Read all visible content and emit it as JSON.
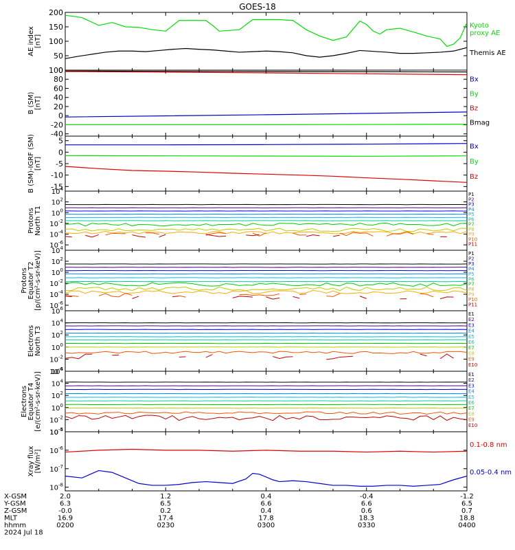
{
  "title": "GOES-18",
  "date_label": "2024 Jul 18",
  "colors": {
    "black": "#000000",
    "green": "#00dd00",
    "blue": "#0000cc",
    "red": "#dd0000",
    "p1": "#000000",
    "p2": "#4b0082",
    "p3": "#0000dd",
    "p4": "#0088ee",
    "p5": "#00bbee",
    "p6": "#00cc99",
    "p7": "#00cc00",
    "p8": "#bbcc00",
    "p9": "#ffaa00",
    "p10": "#ee5500",
    "p11": "#bb0000"
  },
  "footer": {
    "rows": [
      {
        "label": "X-GSM",
        "values": [
          "2.0",
          "1.2",
          "0.4",
          "-0.4",
          "-1.2"
        ]
      },
      {
        "label": "Y-GSM",
        "values": [
          "6.3",
          "6.5",
          "6.6",
          "6.6",
          "6.5"
        ]
      },
      {
        "label": "Z-GSM",
        "values": [
          "-0.0",
          "0.2",
          "0.4",
          "0.6",
          "0.7"
        ]
      },
      {
        "label": "MLT",
        "values": [
          "16.9",
          "17.4",
          "17.8",
          "18.3",
          "18.8"
        ]
      },
      {
        "label": "hhmm",
        "values": [
          "0200",
          "0230",
          "0300",
          "0330",
          "0400"
        ]
      }
    ]
  },
  "chart_data": [
    {
      "type": "line",
      "panel": "ae",
      "ylabel": "AE index\n[nT]",
      "ylim": [
        0,
        200
      ],
      "yticks": [
        0,
        50,
        100,
        150,
        200
      ],
      "ytick_labels": [
        "0",
        "50",
        "100",
        "150",
        "200"
      ],
      "x_minutes": [
        0,
        120
      ],
      "series": [
        {
          "name": "Kyoto\nproxy AE",
          "color": "green",
          "x": [
            0,
            5,
            10,
            14,
            18,
            22,
            26,
            30,
            34,
            38,
            42,
            44,
            46,
            52,
            56,
            60,
            64,
            68,
            72,
            76,
            80,
            84,
            88,
            90,
            92,
            94,
            96,
            100,
            104,
            108,
            112,
            114,
            116,
            118,
            120
          ],
          "y": [
            190,
            182,
            155,
            165,
            150,
            148,
            140,
            135,
            172,
            172,
            172,
            155,
            135,
            140,
            175,
            175,
            175,
            172,
            140,
            118,
            103,
            115,
            170,
            158,
            135,
            125,
            140,
            145,
            132,
            118,
            108,
            82,
            90,
            112,
            165
          ]
        },
        {
          "name": "Themis AE",
          "color": "black",
          "x": [
            0,
            4,
            8,
            12,
            16,
            20,
            24,
            28,
            32,
            36,
            40,
            44,
            48,
            52,
            56,
            60,
            64,
            68,
            72,
            76,
            80,
            84,
            88,
            92,
            96,
            100,
            104,
            108,
            112,
            116,
            120
          ],
          "y": [
            40,
            48,
            55,
            62,
            66,
            66,
            64,
            68,
            72,
            75,
            72,
            70,
            66,
            62,
            64,
            66,
            64,
            60,
            50,
            45,
            50,
            58,
            68,
            65,
            62,
            58,
            58,
            60,
            62,
            66,
            78
          ]
        }
      ]
    },
    {
      "type": "line",
      "panel": "bsm",
      "ylabel": "B (SM)\n[nT]",
      "ylim": [
        -45,
        100
      ],
      "yticks": [
        -40,
        -20,
        0,
        20,
        40,
        60,
        80,
        100
      ],
      "ytick_labels": [
        "-40",
        "-20",
        "0",
        "20",
        "40",
        "60",
        "80",
        "100"
      ],
      "legend": [
        {
          "name": "Bx",
          "color": "blue"
        },
        {
          "name": "By",
          "color": "green"
        },
        {
          "name": "Bz",
          "color": "red"
        },
        {
          "name": "Bmag",
          "color": "black"
        }
      ],
      "series": [
        {
          "name": "Bmag",
          "color": "black",
          "x": [
            0,
            60,
            120
          ],
          "y": [
            98,
            97,
            96
          ]
        },
        {
          "name": "Bz",
          "color": "red",
          "x": [
            0,
            60,
            120
          ],
          "y": [
            97,
            94,
            90
          ]
        },
        {
          "name": "Bx",
          "color": "blue",
          "x": [
            0,
            60,
            120
          ],
          "y": [
            -3,
            2,
            8
          ]
        },
        {
          "name": "By",
          "color": "green",
          "x": [
            0,
            60,
            120
          ],
          "y": [
            -20,
            -20,
            -19
          ]
        }
      ]
    },
    {
      "type": "line",
      "panel": "bmi",
      "ylabel": "B (SM)-IGRF (SM)\n[nT]",
      "ylim": [
        -17,
        7
      ],
      "yticks": [
        -15,
        -10,
        -5,
        0,
        5
      ],
      "ytick_labels": [
        "-15",
        "-10",
        "-5",
        "0",
        "5"
      ],
      "legend": [
        {
          "name": "Bx",
          "color": "blue"
        },
        {
          "name": "By",
          "color": "green"
        },
        {
          "name": "Bz",
          "color": "red"
        }
      ],
      "series": [
        {
          "name": "Bx",
          "color": "blue",
          "x": [
            0,
            30,
            60,
            90,
            120
          ],
          "y": [
            3.2,
            3.2,
            3.3,
            3.5,
            3.8
          ]
        },
        {
          "name": "By",
          "color": "green",
          "x": [
            0,
            30,
            60,
            90,
            120
          ],
          "y": [
            -1.5,
            -1.6,
            -1.7,
            -1.8,
            -1.6
          ]
        },
        {
          "name": "Bz",
          "color": "red",
          "x": [
            0,
            10,
            20,
            30,
            40,
            50,
            60,
            70,
            80,
            90,
            100,
            110,
            120
          ],
          "y": [
            -6.2,
            -7.2,
            -8.0,
            -8.3,
            -8.7,
            -9.2,
            -9.6,
            -10.0,
            -10.5,
            -11.2,
            -11.8,
            -12.5,
            -13.2
          ]
        }
      ]
    },
    {
      "type": "line",
      "panel": "p1",
      "log": true,
      "ylabel": "Protons\nNorth T1",
      "ylim_exp": [
        -7,
        4
      ],
      "ytick_exps": [
        -6,
        -4,
        -2,
        0,
        2,
        4
      ],
      "channels": [
        {
          "name": "P1",
          "color": "p1",
          "level": 1.5
        },
        {
          "name": "P2",
          "color": "p2",
          "level": 0.9
        },
        {
          "name": "P3",
          "color": "p3",
          "level": 0.3
        },
        {
          "name": "P4",
          "color": "p4",
          "level": -0.3
        },
        {
          "name": "P5",
          "color": "p5",
          "level": -0.9
        },
        {
          "name": "P6",
          "color": "p6",
          "level": -1.5
        },
        {
          "name": "P7",
          "color": "p7",
          "level": -2.2,
          "noise": 0.3
        },
        {
          "name": "P8",
          "color": "p8",
          "level": -3.2,
          "noise": 0.3
        },
        {
          "name": "P9",
          "color": "p9",
          "level": -3.7,
          "noise": 0.25
        },
        {
          "name": "P10",
          "color": "p10",
          "level": -4.0,
          "noise": 0.4,
          "sparse": true
        },
        {
          "name": "P11",
          "color": "p11",
          "level": -4.3,
          "noise": 0.3,
          "sparse": true
        }
      ]
    },
    {
      "type": "line",
      "panel": "p2",
      "log": true,
      "ylabel": "Protons\nEquator T2\n[p/(cm²-s-sr-keV)]",
      "ylim_exp": [
        -7,
        4
      ],
      "ytick_exps": [
        -6,
        -4,
        -2,
        0,
        2,
        4
      ],
      "channels": [
        {
          "name": "P1",
          "color": "p1",
          "level": 1.5
        },
        {
          "name": "P2",
          "color": "p2",
          "level": 0.9
        },
        {
          "name": "P3",
          "color": "p3",
          "level": 0.3
        },
        {
          "name": "P4",
          "color": "p4",
          "level": -0.3
        },
        {
          "name": "P5",
          "color": "p5",
          "level": -1.0
        },
        {
          "name": "P6",
          "color": "p6",
          "level": -1.7
        },
        {
          "name": "P7",
          "color": "p7",
          "level": -2.2,
          "noise": 0.35
        },
        {
          "name": "P8",
          "color": "p8",
          "level": -3.0,
          "noise": 0.35
        },
        {
          "name": "P9",
          "color": "p9",
          "level": -3.6,
          "noise": 0.3
        },
        {
          "name": "P10",
          "color": "p10",
          "level": -4.2,
          "noise": 0.4,
          "sparse": true
        },
        {
          "name": "P11",
          "color": "p11",
          "level": -4.6,
          "noise": 0.3,
          "sparse": true
        }
      ]
    },
    {
      "type": "line",
      "panel": "e3",
      "log": true,
      "ylabel": "Electrons\nNorth T3",
      "ylim_exp": [
        -4,
        6
      ],
      "ytick_exps": [
        -4,
        -2,
        0,
        2,
        4,
        6
      ],
      "channels": [
        {
          "name": "E1",
          "color": "p1",
          "level": 4.0
        },
        {
          "name": "E2",
          "color": "p2",
          "level": 3.5
        },
        {
          "name": "E3",
          "color": "p3",
          "level": 2.9
        },
        {
          "name": "E4",
          "color": "p4",
          "level": 2.3
        },
        {
          "name": "E5",
          "color": "p5",
          "level": 1.7
        },
        {
          "name": "E6",
          "color": "p6",
          "level": 1.2
        },
        {
          "name": "E7",
          "color": "p7",
          "level": 0.6
        },
        {
          "name": "E8",
          "color": "p8",
          "level": 0.0
        },
        {
          "name": "E9",
          "color": "p10",
          "level": -0.9,
          "noise": 0.2
        },
        {
          "name": "E10",
          "color": "p11",
          "level": -1.6,
          "noise": 0.45,
          "sparse": true
        }
      ]
    },
    {
      "type": "line",
      "panel": "e4",
      "log": true,
      "ylabel": "Electrons\nEquator T4\n[e/(cm²-s-sr-keV)]",
      "ylim_exp": [
        -4,
        6
      ],
      "ytick_exps": [
        -4,
        -2,
        0,
        2,
        4,
        6
      ],
      "channels": [
        {
          "name": "E1",
          "color": "p1",
          "level": 4.2
        },
        {
          "name": "E2",
          "color": "p2",
          "level": 3.6
        },
        {
          "name": "E3",
          "color": "p3",
          "level": 3.0
        },
        {
          "name": "E4",
          "color": "p4",
          "level": 2.3
        },
        {
          "name": "E5",
          "color": "p5",
          "level": 1.7
        },
        {
          "name": "E6",
          "color": "p6",
          "level": 1.1
        },
        {
          "name": "E7",
          "color": "p7",
          "level": 0.5
        },
        {
          "name": "E8",
          "color": "p8",
          "level": -0.1
        },
        {
          "name": "E9",
          "color": "p10",
          "level": -0.9,
          "noise": 0.2
        },
        {
          "name": "E10",
          "color": "p11",
          "level": -1.7,
          "noise": 0.45
        }
      ]
    },
    {
      "type": "line",
      "panel": "xray",
      "log": true,
      "ylabel": "Xray flux\n[W/m²]",
      "ylim_exp": [
        -8.2,
        -5
      ],
      "ytick_exps": [
        -8,
        -7,
        -6,
        -5
      ],
      "series": [
        {
          "name": "0.1-0.8 nm",
          "color": "red",
          "x": [
            0,
            10,
            20,
            30,
            40,
            50,
            60,
            70,
            80,
            90,
            100,
            110,
            120
          ],
          "y": [
            -6.1,
            -6.0,
            -5.95,
            -6.0,
            -6.0,
            -6.05,
            -6.0,
            -6.05,
            -6.05,
            -6.1,
            -6.05,
            -6.1,
            -6.05
          ]
        },
        {
          "name": "0.05-0.4 nm",
          "color": "blue",
          "x": [
            0,
            5,
            10,
            14,
            18,
            22,
            26,
            30,
            34,
            38,
            42,
            46,
            50,
            54,
            56,
            58,
            60,
            62,
            64,
            68,
            72,
            76,
            80,
            84,
            88,
            92,
            96,
            100,
            104,
            108,
            112,
            116,
            120
          ],
          "y": [
            -7.4,
            -7.5,
            -7.1,
            -7.2,
            -7.5,
            -7.8,
            -7.9,
            -7.9,
            -7.85,
            -7.75,
            -7.7,
            -7.75,
            -7.8,
            -7.55,
            -7.25,
            -7.3,
            -7.45,
            -7.6,
            -7.7,
            -7.65,
            -7.7,
            -7.8,
            -7.9,
            -7.9,
            -7.95,
            -7.95,
            -7.9,
            -7.9,
            -7.95,
            -7.9,
            -7.85,
            -7.6,
            -7.4
          ]
        }
      ]
    }
  ]
}
